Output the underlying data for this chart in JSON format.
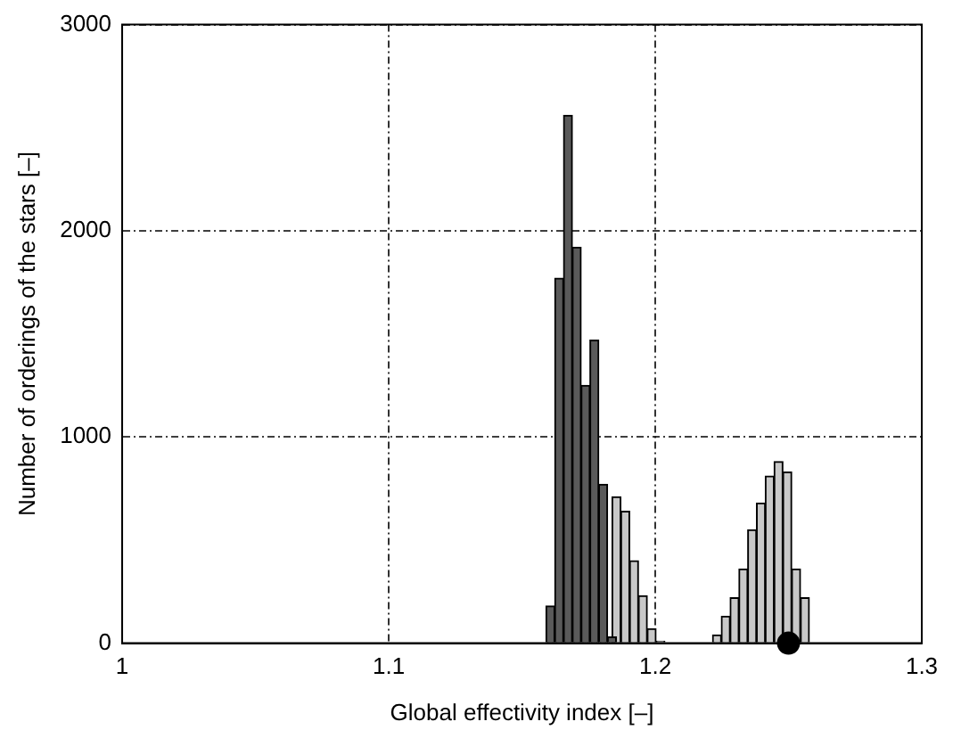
{
  "chart_data": {
    "type": "histogram",
    "xlabel": "Global effectivity index [–]",
    "ylabel": "Number of orderings of the stars [–]",
    "xlim": [
      1,
      1.3
    ],
    "xticks": [
      1,
      1.1,
      1.2,
      1.3
    ],
    "ylim": [
      0,
      3000
    ],
    "yticks": [
      0,
      1000,
      2000,
      3000
    ],
    "grid": true,
    "series": [
      {
        "color": "#c8c8c8",
        "bins": [
          1.164,
          1.1673,
          1.1706,
          1.1739,
          1.1772,
          1.1805,
          1.1838,
          1.1871,
          1.1904,
          1.1937,
          1.197,
          1.2003,
          1.2036
        ],
        "values": [
          null,
          null,
          null,
          null,
          null,
          null,
          710,
          640,
          400,
          230,
          70,
          10
        ]
      },
      {
        "color": "#c8c8c8",
        "bins": [
          1.2215,
          1.2248,
          1.2281,
          1.2314,
          1.2347,
          1.238,
          1.2413,
          1.2446,
          1.2479,
          1.2512,
          1.2545,
          1.2578
        ],
        "values": [
          40,
          130,
          220,
          360,
          550,
          680,
          810,
          880,
          830,
          360,
          220
        ]
      },
      {
        "color": "#5a5a5a",
        "bins": [
          1.159,
          1.1623,
          1.1656,
          1.1689,
          1.1722,
          1.1755,
          1.1788,
          1.1821,
          1.1854
        ],
        "values": [
          180,
          1770,
          2560,
          1920,
          1250,
          1470,
          770,
          30
        ]
      },
      {
        "type": "scatter",
        "color": "#000000",
        "x": [
          1.25
        ],
        "values": [
          0
        ],
        "marker": "circle"
      }
    ]
  }
}
